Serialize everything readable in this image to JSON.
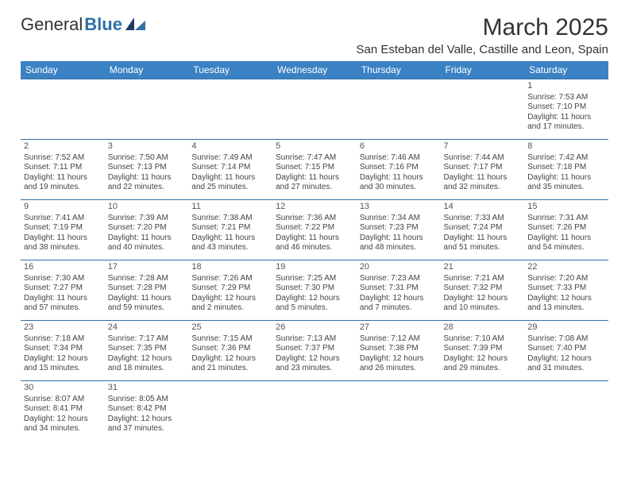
{
  "brand": {
    "part1": "General",
    "part2": "Blue"
  },
  "title": "March 2025",
  "location": "San Esteban del Valle, Castille and Leon, Spain",
  "colors": {
    "header_bg": "#3b82c4",
    "header_text": "#ffffff",
    "rule": "#2f6fa8",
    "text": "#444444"
  },
  "day_labels": [
    "Sunday",
    "Monday",
    "Tuesday",
    "Wednesday",
    "Thursday",
    "Friday",
    "Saturday"
  ],
  "weeks": [
    [
      null,
      null,
      null,
      null,
      null,
      null,
      {
        "n": "1",
        "sunrise": "7:53 AM",
        "sunset": "7:10 PM",
        "dl_h": 11,
        "dl_m": 17
      }
    ],
    [
      {
        "n": "2",
        "sunrise": "7:52 AM",
        "sunset": "7:11 PM",
        "dl_h": 11,
        "dl_m": 19
      },
      {
        "n": "3",
        "sunrise": "7:50 AM",
        "sunset": "7:13 PM",
        "dl_h": 11,
        "dl_m": 22
      },
      {
        "n": "4",
        "sunrise": "7:49 AM",
        "sunset": "7:14 PM",
        "dl_h": 11,
        "dl_m": 25
      },
      {
        "n": "5",
        "sunrise": "7:47 AM",
        "sunset": "7:15 PM",
        "dl_h": 11,
        "dl_m": 27
      },
      {
        "n": "6",
        "sunrise": "7:46 AM",
        "sunset": "7:16 PM",
        "dl_h": 11,
        "dl_m": 30
      },
      {
        "n": "7",
        "sunrise": "7:44 AM",
        "sunset": "7:17 PM",
        "dl_h": 11,
        "dl_m": 32
      },
      {
        "n": "8",
        "sunrise": "7:42 AM",
        "sunset": "7:18 PM",
        "dl_h": 11,
        "dl_m": 35
      }
    ],
    [
      {
        "n": "9",
        "sunrise": "7:41 AM",
        "sunset": "7:19 PM",
        "dl_h": 11,
        "dl_m": 38
      },
      {
        "n": "10",
        "sunrise": "7:39 AM",
        "sunset": "7:20 PM",
        "dl_h": 11,
        "dl_m": 40
      },
      {
        "n": "11",
        "sunrise": "7:38 AM",
        "sunset": "7:21 PM",
        "dl_h": 11,
        "dl_m": 43
      },
      {
        "n": "12",
        "sunrise": "7:36 AM",
        "sunset": "7:22 PM",
        "dl_h": 11,
        "dl_m": 46
      },
      {
        "n": "13",
        "sunrise": "7:34 AM",
        "sunset": "7:23 PM",
        "dl_h": 11,
        "dl_m": 48
      },
      {
        "n": "14",
        "sunrise": "7:33 AM",
        "sunset": "7:24 PM",
        "dl_h": 11,
        "dl_m": 51
      },
      {
        "n": "15",
        "sunrise": "7:31 AM",
        "sunset": "7:26 PM",
        "dl_h": 11,
        "dl_m": 54
      }
    ],
    [
      {
        "n": "16",
        "sunrise": "7:30 AM",
        "sunset": "7:27 PM",
        "dl_h": 11,
        "dl_m": 57
      },
      {
        "n": "17",
        "sunrise": "7:28 AM",
        "sunset": "7:28 PM",
        "dl_h": 11,
        "dl_m": 59
      },
      {
        "n": "18",
        "sunrise": "7:26 AM",
        "sunset": "7:29 PM",
        "dl_h": 12,
        "dl_m": 2
      },
      {
        "n": "19",
        "sunrise": "7:25 AM",
        "sunset": "7:30 PM",
        "dl_h": 12,
        "dl_m": 5
      },
      {
        "n": "20",
        "sunrise": "7:23 AM",
        "sunset": "7:31 PM",
        "dl_h": 12,
        "dl_m": 7
      },
      {
        "n": "21",
        "sunrise": "7:21 AM",
        "sunset": "7:32 PM",
        "dl_h": 12,
        "dl_m": 10
      },
      {
        "n": "22",
        "sunrise": "7:20 AM",
        "sunset": "7:33 PM",
        "dl_h": 12,
        "dl_m": 13
      }
    ],
    [
      {
        "n": "23",
        "sunrise": "7:18 AM",
        "sunset": "7:34 PM",
        "dl_h": 12,
        "dl_m": 15
      },
      {
        "n": "24",
        "sunrise": "7:17 AM",
        "sunset": "7:35 PM",
        "dl_h": 12,
        "dl_m": 18
      },
      {
        "n": "25",
        "sunrise": "7:15 AM",
        "sunset": "7:36 PM",
        "dl_h": 12,
        "dl_m": 21
      },
      {
        "n": "26",
        "sunrise": "7:13 AM",
        "sunset": "7:37 PM",
        "dl_h": 12,
        "dl_m": 23
      },
      {
        "n": "27",
        "sunrise": "7:12 AM",
        "sunset": "7:38 PM",
        "dl_h": 12,
        "dl_m": 26
      },
      {
        "n": "28",
        "sunrise": "7:10 AM",
        "sunset": "7:39 PM",
        "dl_h": 12,
        "dl_m": 29
      },
      {
        "n": "29",
        "sunrise": "7:08 AM",
        "sunset": "7:40 PM",
        "dl_h": 12,
        "dl_m": 31
      }
    ],
    [
      {
        "n": "30",
        "sunrise": "8:07 AM",
        "sunset": "8:41 PM",
        "dl_h": 12,
        "dl_m": 34
      },
      {
        "n": "31",
        "sunrise": "8:05 AM",
        "sunset": "8:42 PM",
        "dl_h": 12,
        "dl_m": 37
      },
      null,
      null,
      null,
      null,
      null
    ]
  ],
  "labels": {
    "sunrise": "Sunrise:",
    "sunset": "Sunset:",
    "daylight": "Daylight:"
  }
}
